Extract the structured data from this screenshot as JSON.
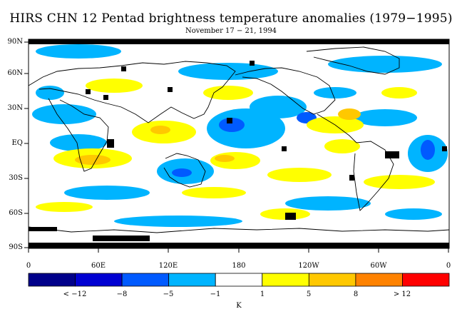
{
  "title": "HIRS CHN 12 Pentad brightness temperature anomalies (1979−1995)",
  "subtitle": "November 17 − 21, 1994",
  "lat_labels": [
    "90N",
    "60N",
    "30N",
    "EQ",
    "30S",
    "60S",
    "90S"
  ],
  "lon_labels": [
    "0",
    "60E",
    "120E",
    "180",
    "120W",
    "60W",
    "0"
  ],
  "colorbar": {
    "colors": [
      "#00008a",
      "#0000d2",
      "#005aff",
      "#00b4ff",
      "#ffffff",
      "#ffff00",
      "#ffc800",
      "#ff8200",
      "#ff0000"
    ],
    "labels": [
      "< −12",
      "−8",
      "−5",
      "−1",
      "1",
      "5",
      "8",
      "> 12"
    ],
    "unit": "K"
  },
  "land_color": "#000000",
  "missing_color": "#000000"
}
